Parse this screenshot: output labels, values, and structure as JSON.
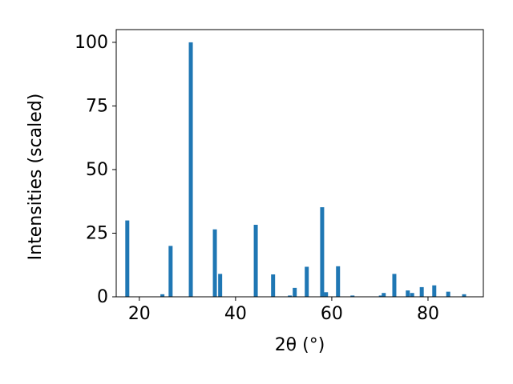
{
  "chart_data": {
    "type": "bar",
    "x_label": "2θ (°)",
    "y_label": "Intensities (scaled)",
    "x": [
      17.5,
      24.8,
      26.5,
      30.7,
      35.7,
      36.8,
      44.2,
      47.8,
      51.3,
      52.3,
      54.8,
      58.0,
      58.8,
      61.3,
      64.3,
      70.2,
      70.8,
      73.0,
      75.8,
      76.7,
      78.7,
      81.3,
      84.2,
      87.5
    ],
    "values": [
      30,
      1,
      20,
      100,
      26.5,
      9,
      28.3,
      8.8,
      0.5,
      3.5,
      11.8,
      35.2,
      1.8,
      12,
      0.5,
      0.5,
      1.5,
      9,
      2.5,
      1.5,
      3.8,
      4.5,
      2,
      1
    ],
    "color": "#1f77b4",
    "xlim": [
      15.2,
      91.5
    ],
    "xticks": [
      20,
      40,
      60,
      80
    ],
    "ylim": [
      0,
      105
    ],
    "yticks": [
      0,
      25,
      50,
      75,
      100
    ]
  }
}
